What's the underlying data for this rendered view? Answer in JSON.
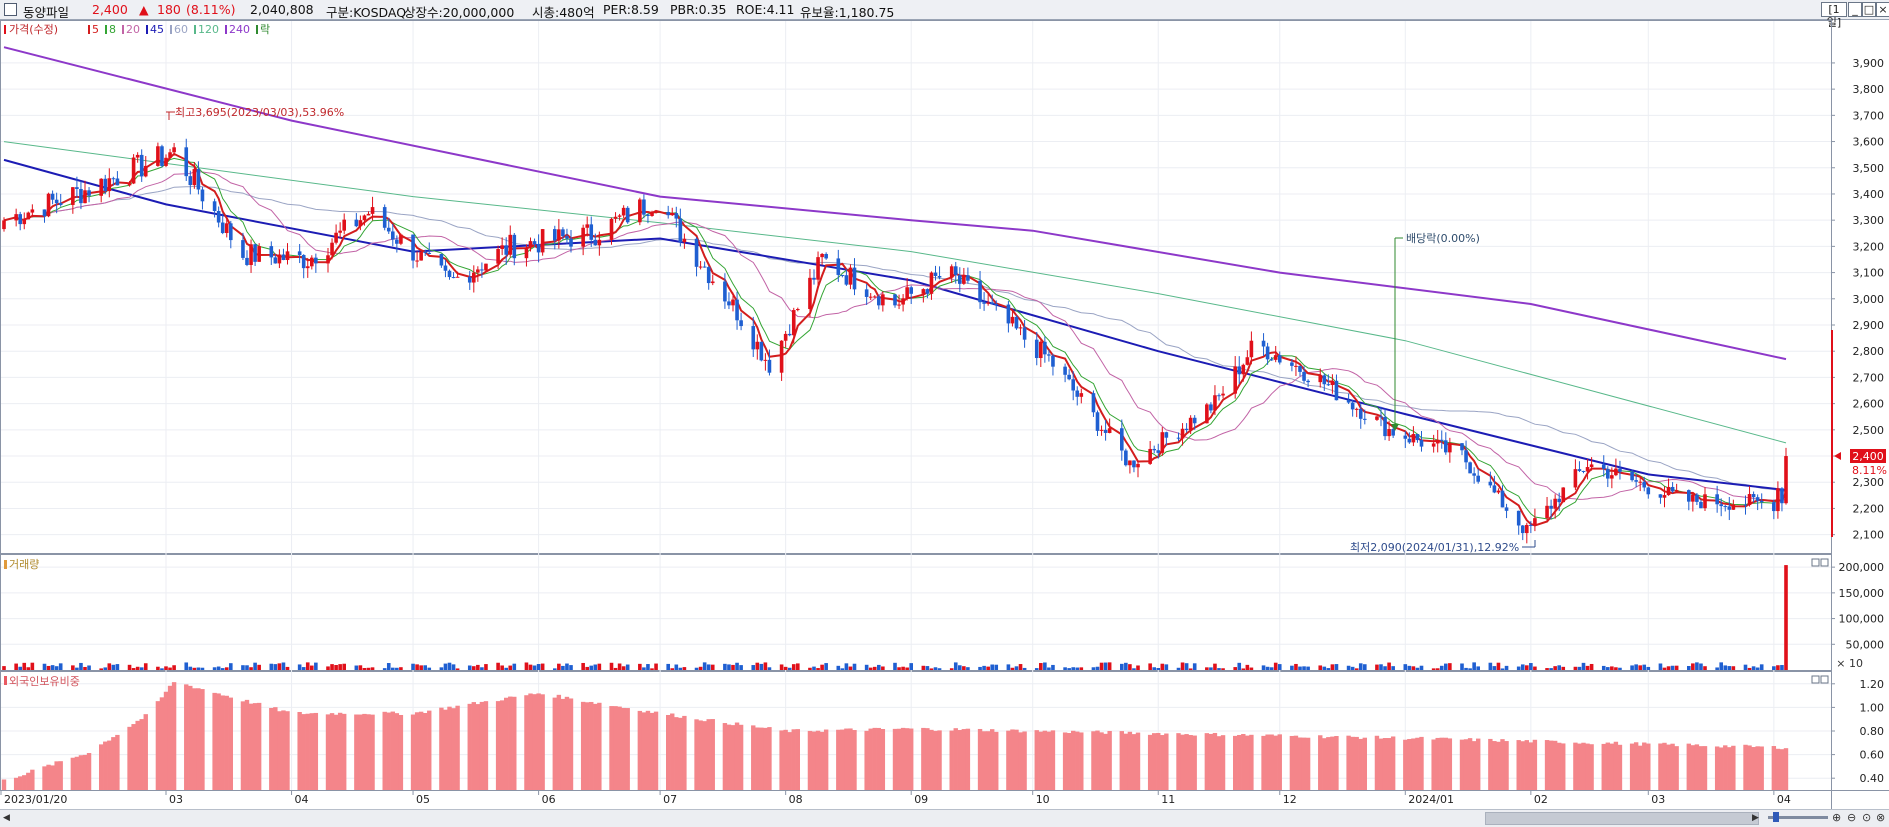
{
  "header": {
    "stock_name": "동양파일",
    "price": "2,400",
    "change_arrow": "▲",
    "change": "180",
    "change_pct": "(8.11%)",
    "volume": "2,040,808",
    "market": "구분:KOSDAQ",
    "shares": "상장수:20,000,000",
    "market_cap": "시총:480억",
    "per": "PER:8.59",
    "pbr": "PBR:0.35",
    "roe": "ROE:4.11",
    "float_ratio": "유보율:1,180.75",
    "period_button": "[1일]"
  },
  "colors": {
    "up": "#e0101a",
    "down": "#1f5fd1",
    "ma5": "#d31d1d",
    "ma8": "#34a534",
    "ma20": "#c264a6",
    "ma45": "#1c1cb4",
    "ma60": "#9aa4c4",
    "ma120": "#58b88a",
    "ma240": "#8d38c9",
    "foreign_bar": "#f4858a"
  },
  "legend": {
    "price_label": "가격(수정)",
    "ma": [
      {
        "label": "5",
        "color": "#d31d1d"
      },
      {
        "label": "8",
        "color": "#34a534"
      },
      {
        "label": "20",
        "color": "#c264a6"
      },
      {
        "label": "45",
        "color": "#1c1cb4"
      },
      {
        "label": "60",
        "color": "#9aa4c4"
      },
      {
        "label": "120",
        "color": "#58b88a"
      },
      {
        "label": "240",
        "color": "#8d38c9"
      }
    ],
    "ex_label": "락"
  },
  "annotations": {
    "high": "최고3,695(2023/03/03),53.96%",
    "low": "최저2,090(2024/01/31),12.92%",
    "dividend": "배당락(0.00%)",
    "current_price": "2,400",
    "current_pct": "8.11%"
  },
  "volume_panel": {
    "title": "거래량",
    "unit": "× 10"
  },
  "foreign_panel": {
    "title": "외국인보유비중"
  },
  "chart_data": [
    {
      "type": "candlestick",
      "title": "가격(수정)",
      "x_range": [
        "2023/01/20",
        "2024/04/04"
      ],
      "x_ticks": [
        "2023/01/20",
        "03",
        "04",
        "05",
        "06",
        "07",
        "08",
        "09",
        "10",
        "11",
        "12",
        "2024/01",
        "02",
        "03",
        "04"
      ],
      "y_ticks": [
        "2,100",
        "2,200",
        "2,300",
        "2,400",
        "2,500",
        "2,600",
        "2,700",
        "2,800",
        "2,900",
        "3,000",
        "3,100",
        "3,200",
        "3,300",
        "3,400",
        "3,500",
        "3,600",
        "3,700",
        "3,800",
        "3,900"
      ],
      "ylim": [
        2030,
        4060
      ],
      "summary_closes": [
        {
          "x": "2023/01/20",
          "y": 3300
        },
        {
          "x": "2023/02/10",
          "y": 3420
        },
        {
          "x": "2023/03/03",
          "y": 3560
        },
        {
          "x": "2023/03/20",
          "y": 3170
        },
        {
          "x": "2023/04/05",
          "y": 3150
        },
        {
          "x": "2023/04/20",
          "y": 3330
        },
        {
          "x": "2023/05/10",
          "y": 3060
        },
        {
          "x": "2023/05/25",
          "y": 3200
        },
        {
          "x": "2023/06/15",
          "y": 3250
        },
        {
          "x": "2023/06/30",
          "y": 3380
        },
        {
          "x": "2023/07/20",
          "y": 2950
        },
        {
          "x": "2023/07/28",
          "y": 2750
        },
        {
          "x": "2023/08/10",
          "y": 3150
        },
        {
          "x": "2023/08/28",
          "y": 2980
        },
        {
          "x": "2023/09/10",
          "y": 3100
        },
        {
          "x": "2023/10/05",
          "y": 2770
        },
        {
          "x": "2023/10/25",
          "y": 2370
        },
        {
          "x": "2023/11/15",
          "y": 2600
        },
        {
          "x": "2023/11/25",
          "y": 2830
        },
        {
          "x": "2023/12/10",
          "y": 2700
        },
        {
          "x": "2023/12/28",
          "y": 2500
        },
        {
          "x": "2024/01/15",
          "y": 2400
        },
        {
          "x": "2024/01/31",
          "y": 2110
        },
        {
          "x": "2024/02/15",
          "y": 2370
        },
        {
          "x": "2024/03/10",
          "y": 2230
        },
        {
          "x": "2024/04/01",
          "y": 2220
        },
        {
          "x": "2024/04/04",
          "y": 2400
        }
      ],
      "moving_averages": [
        {
          "name": "240",
          "points": [
            {
              "x": "2023/01/20",
              "y": 3960
            },
            {
              "x": "2023/04/01",
              "y": 3680
            },
            {
              "x": "2023/07/01",
              "y": 3390
            },
            {
              "x": "2023/09/01",
              "y": 3300
            },
            {
              "x": "2023/10/01",
              "y": 3260
            },
            {
              "x": "2023/12/01",
              "y": 3100
            },
            {
              "x": "2024/02/01",
              "y": 2980
            },
            {
              "x": "2024/04/04",
              "y": 2770
            }
          ]
        },
        {
          "name": "120",
          "points": [
            {
              "x": "2023/01/20",
              "y": 3600
            },
            {
              "x": "2023/05/01",
              "y": 3390
            },
            {
              "x": "2023/07/01",
              "y": 3290
            },
            {
              "x": "2023/09/01",
              "y": 3180
            },
            {
              "x": "2023/11/01",
              "y": 3020
            },
            {
              "x": "2024/01/01",
              "y": 2840
            },
            {
              "x": "2024/04/04",
              "y": 2450
            }
          ]
        },
        {
          "name": "45",
          "points": [
            {
              "x": "2023/01/20",
              "y": 3530
            },
            {
              "x": "2023/03/01",
              "y": 3360
            },
            {
              "x": "2023/05/01",
              "y": 3180
            },
            {
              "x": "2023/07/01",
              "y": 3230
            },
            {
              "x": "2023/09/01",
              "y": 3070
            },
            {
              "x": "2023/11/01",
              "y": 2800
            },
            {
              "x": "2024/01/01",
              "y": 2560
            },
            {
              "x": "2024/03/01",
              "y": 2330
            },
            {
              "x": "2024/04/04",
              "y": 2270
            }
          ]
        }
      ]
    },
    {
      "type": "bar",
      "title": "거래량",
      "y_ticks": [
        "200,000",
        "150,000",
        "100,000",
        "50,000"
      ],
      "unit": "× 10",
      "note": "last bar (2024/04/04) ≈ 204,000; typical daily ≈ 3,000–20,000"
    },
    {
      "type": "bar",
      "title": "외국인보유비중",
      "y_ticks": [
        "1.20",
        "1.00",
        "0.80",
        "0.60",
        "0.40"
      ],
      "ylim": [
        0.3,
        1.3
      ],
      "points": [
        {
          "x": "2023/01/20",
          "y": 0.38
        },
        {
          "x": "2023/02/10",
          "y": 0.62
        },
        {
          "x": "2023/02/25",
          "y": 0.95
        },
        {
          "x": "2023/03/03",
          "y": 1.22
        },
        {
          "x": "2023/04/01",
          "y": 0.95
        },
        {
          "x": "2023/05/01",
          "y": 0.95
        },
        {
          "x": "2023/06/01",
          "y": 1.12
        },
        {
          "x": "2023/07/01",
          "y": 0.95
        },
        {
          "x": "2023/08/01",
          "y": 0.8
        },
        {
          "x": "2023/09/01",
          "y": 0.82
        },
        {
          "x": "2023/11/01",
          "y": 0.78
        },
        {
          "x": "2024/01/01",
          "y": 0.74
        },
        {
          "x": "2024/04/04",
          "y": 0.66
        }
      ]
    }
  ]
}
